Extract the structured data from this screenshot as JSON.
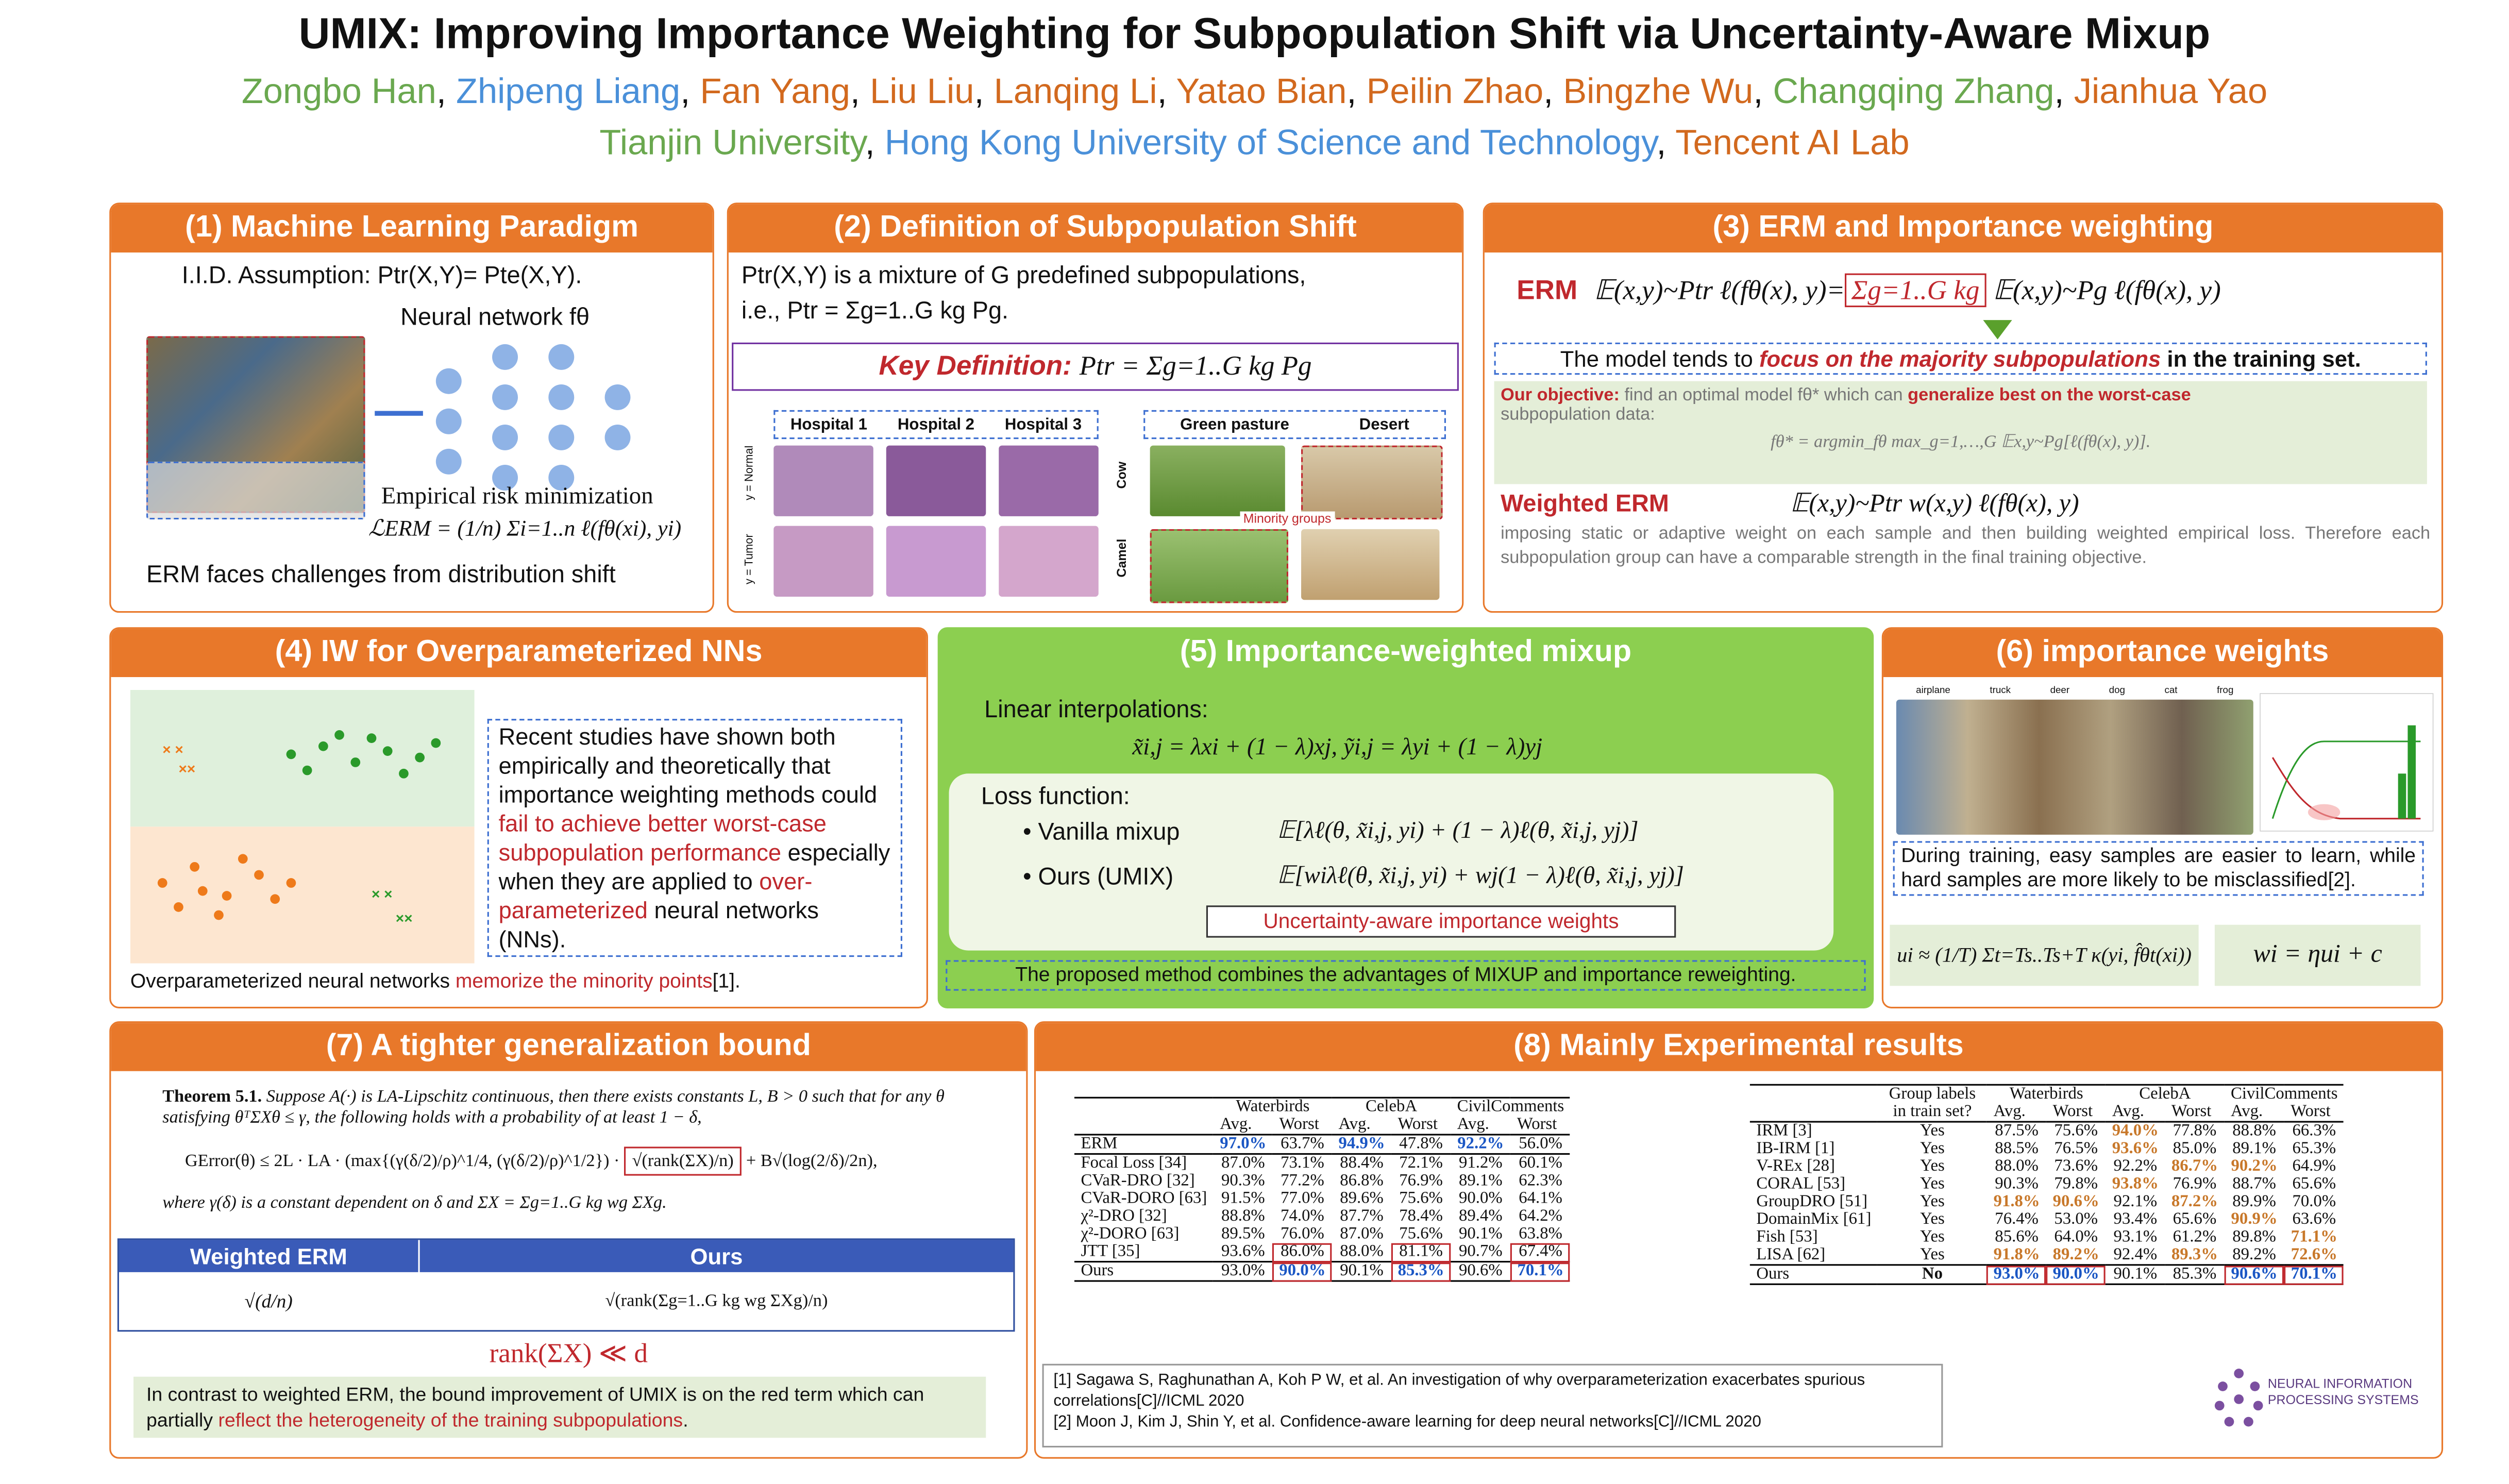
{
  "header": {
    "title": "UMIX: Improving Importance Weighting for Subpopulation Shift  via Uncertainty-Aware Mixup",
    "authors": [
      "Zongbo Han",
      "Zhipeng Liang",
      "Fan Yang",
      "Liu Liu",
      "Lanqing Li",
      "Yatao Bian",
      "Peilin Zhao",
      "Bingzhe Wu",
      "Changqing Zhang",
      "Jianhua Yao"
    ],
    "affiliations": [
      "Tianjin University",
      "Hong Kong University of Science and Technology",
      "Tencent AI Lab"
    ]
  },
  "p1": {
    "title": "(1) Machine Learning Paradigm",
    "iid": "I.I.D. Assumption: Ptr(X,Y)= Pte(X,Y).",
    "network": "Neural network fθ",
    "erm_label": "Empirical risk minimization",
    "erm_formula": "ℒERM = (1/n) Σi=1..n ℓ(fθ(xi), yi)",
    "caption": "ERM faces challenges from distribution shift"
  },
  "p2": {
    "title": "(2) Definition of Subpopulation Shift",
    "line1": "Ptr(X,Y) is a mixture of G predefined subpopulations,",
    "line2": "i.e., Ptr = Σg=1..G kg Pg.",
    "key_label": "Key Definition:",
    "key_formula": "Ptr = Σg=1..G kg Pg",
    "hospitals": [
      "Hospital 1",
      "Hospital 2",
      "Hospital 3"
    ],
    "label_normal": "y = Normal",
    "label_tumor": "y = Tumor",
    "pasture": "Green pasture",
    "desert": "Desert",
    "cow": "Cow",
    "camel": "Camel",
    "minority": "Minority groups"
  },
  "p3": {
    "title": "(3) ERM and Importance weighting",
    "erm_label": "ERM",
    "erm_lhs": "𝔼(x,y)~Ptr ℓ(fθ(x), y)=",
    "sum_box": "Σg=1..G kg",
    "erm_rhs": "𝔼(x,y)~Pg ℓ(fθ(x), y)",
    "note_pre": "The model tends to",
    "note_em": "focus on the majority subpopulations",
    "note_post": "in the training set.",
    "objective_label": "Our objective:",
    "objective_text": "find an optimal model fθ* which can",
    "objective_em": "generalize best on the worst-case",
    "objective_rest": "subpopulation data:",
    "objective_formula": "fθ* = argmin_fθ  max_g=1,…,G  𝔼x,y~Pg[ℓ(fθ(x), y)].",
    "werm_label": "Weighted ERM",
    "werm_formula": "𝔼(x,y)~Ptr w(x,y) ℓ(fθ(x), y)",
    "werm_text": "imposing static or adaptive weight on each sample and then building weighted empirical loss. Therefore each subpopulation group can have a comparable strength in the final training objective."
  },
  "p4": {
    "title": "(4) IW for Overparameterized NNs",
    "text_pre": "Recent studies have shown both empirically and theoretically that importance weighting methods could",
    "text_em1": "fail to achieve better worst-case subpopulation performance",
    "text_mid": "especially when they are applied to",
    "text_em2": "over-parameterized",
    "text_post": "neural networks (NNs).",
    "caption_pre": "Overparameterized neural networks",
    "caption_em": "memorize the minority points",
    "caption_ref": "[1]."
  },
  "p5": {
    "title": "(5) Importance-weighted mixup",
    "linear": "Linear interpolations:",
    "interp": "x̃i,j = λxi + (1 − λ)xj,  ỹi,j = λyi + (1 − λ)yj",
    "loss": "Loss function:",
    "vanilla_label": "Vanilla mixup",
    "vanilla_formula": "𝔼[λℓ(θ, x̃i,j, yi) + (1 − λ)ℓ(θ, x̃i,j, yj)]",
    "ours_label": "Ours (UMIX)",
    "ours_formula": "𝔼[wiλℓ(θ, x̃i,j, yi) + wj(1 − λ)ℓ(θ, x̃i,j, yj)]",
    "weights": "Uncertainty-aware importance weights",
    "footer": "The proposed method combines the advantages of MIXUP and importance reweighting."
  },
  "p6": {
    "title": "(6) importance weights",
    "cifar": [
      "airplane",
      "truck",
      "deer",
      "dog",
      "cat",
      "frog"
    ],
    "text": "During training, easy samples are easier to learn, while hard samples are more likely to be misclassified[2].",
    "formula_u": "ui ≈ (1/T) Σt=Ts..Ts+T κ(yi, f̂θt(xi))",
    "formula_w": "wi = ηui + c"
  },
  "p7": {
    "title": "(7) A tighter generalization bound",
    "theorem_label": "Theorem 5.1.",
    "theorem": "Suppose A(·) is LA-Lipschitz continuous, then there exists constants L, B > 0 such that for any θ satisfying θᵀΣXθ ≤ γ, the following holds with a probability of at least 1 − δ,",
    "bound": "GError(θ) ≤ 2L · LA · (max{(γ(δ/2)/ρ)^1/4, (γ(δ/2)/ρ)^1/2}) ·",
    "bound_box": "√(rank(ΣX)/n)",
    "bound_tail": "+ B√(log(2/δ)/2n),",
    "where": "where γ(δ) is a constant dependent on δ and ΣX = Σg=1..G kg wg ΣXg.",
    "col_werm": "Weighted ERM",
    "col_ours": "Ours",
    "cell_werm": "√(d/n)",
    "cell_ours": "√(rank(Σg=1..G kg wg ΣXg)/n)",
    "rank": "rank(ΣX) ≪ d",
    "footer_pre": "In contrast to weighted ERM, the bound improvement of UMIX is on the red term which can partially",
    "footer_em": "reflect the heterogeneity of the training subpopulations",
    "footer_post": "."
  },
  "p8": {
    "title": "(8) Mainly Experimental results",
    "left": {
      "groups": [
        "Waterbirds",
        "CelebA",
        "CivilComments"
      ],
      "sub": [
        "Avg.",
        "Worst",
        "Avg.",
        "Worst",
        "Avg.",
        "Worst"
      ],
      "rows": [
        [
          "ERM",
          "97.0%",
          "63.7%",
          "94.9%",
          "47.8%",
          "92.2%",
          "56.0%"
        ],
        [
          "Focal Loss [34]",
          "87.0%",
          "73.1%",
          "88.4%",
          "72.1%",
          "91.2%",
          "60.1%"
        ],
        [
          "CVaR-DRO [32]",
          "90.3%",
          "77.2%",
          "86.8%",
          "76.9%",
          "89.1%",
          "62.3%"
        ],
        [
          "CVaR-DORO [63]",
          "91.5%",
          "77.0%",
          "89.6%",
          "75.6%",
          "90.0%",
          "64.1%"
        ],
        [
          "χ²-DRO [32]",
          "88.8%",
          "74.0%",
          "87.7%",
          "78.4%",
          "89.4%",
          "64.2%"
        ],
        [
          "χ²-DORO [63]",
          "89.5%",
          "76.0%",
          "87.0%",
          "75.6%",
          "90.1%",
          "63.8%"
        ],
        [
          "JTT [35]",
          "93.6%",
          "86.0%",
          "88.0%",
          "81.1%",
          "90.7%",
          "67.4%"
        ],
        [
          "Ours",
          "93.0%",
          "90.0%",
          "90.1%",
          "85.3%",
          "90.6%",
          "70.1%"
        ]
      ]
    },
    "right": {
      "group_col": "Group labels in train set?",
      "groups": [
        "Waterbirds",
        "CelebA",
        "CivilComments"
      ],
      "sub": [
        "Avg.",
        "Worst",
        "Avg.",
        "Worst",
        "Avg.",
        "Worst"
      ],
      "rows": [
        [
          "IRM [3]",
          "Yes",
          "87.5%",
          "75.6%",
          "94.0%",
          "77.8%",
          "88.8%",
          "66.3%"
        ],
        [
          "IB-IRM [1]",
          "Yes",
          "88.5%",
          "76.5%",
          "93.6%",
          "85.0%",
          "89.1%",
          "65.3%"
        ],
        [
          "V-REx [28]",
          "Yes",
          "88.0%",
          "73.6%",
          "92.2%",
          "86.7%",
          "90.2%",
          "64.9%"
        ],
        [
          "CORAL [53]",
          "Yes",
          "90.3%",
          "79.8%",
          "93.8%",
          "76.9%",
          "88.7%",
          "65.6%"
        ],
        [
          "GroupDRO [51]",
          "Yes",
          "91.8%",
          "90.6%",
          "92.1%",
          "87.2%",
          "89.9%",
          "70.0%"
        ],
        [
          "DomainMix [61]",
          "Yes",
          "76.4%",
          "53.0%",
          "93.4%",
          "65.6%",
          "90.9%",
          "63.6%"
        ],
        [
          "Fish [53]",
          "Yes",
          "85.6%",
          "64.0%",
          "93.1%",
          "61.2%",
          "89.8%",
          "71.1%"
        ],
        [
          "LISA [62]",
          "Yes",
          "91.8%",
          "89.2%",
          "92.4%",
          "89.3%",
          "89.2%",
          "72.6%"
        ],
        [
          "Ours",
          "No",
          "93.0%",
          "90.0%",
          "90.1%",
          "85.3%",
          "90.6%",
          "70.1%"
        ]
      ]
    },
    "refs": [
      "[1] Sagawa S, Raghunathan A, Koh P W, et al. An investigation of why overparameterization exacerbates spurious correlations[C]//ICML 2020",
      "[2] Moon J, Kim J, Shin Y, et al. Confidence-aware learning for deep neural networks[C]//ICML 2020"
    ],
    "neurips": "NEURAL INFORMATION PROCESSING SYSTEMS"
  }
}
